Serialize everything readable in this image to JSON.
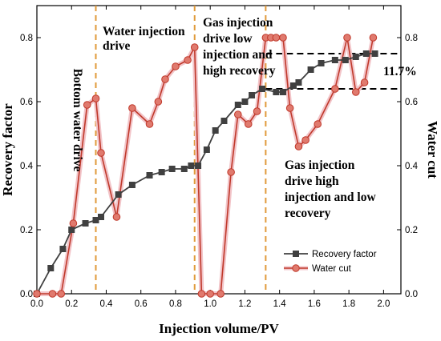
{
  "colors": {
    "recovery": "#404040",
    "water_cut": "#c0392b",
    "water_cut_fill": "#e07a6e",
    "water_cut_halo": "#f2c4c8",
    "divider": "#e09a3a",
    "reference": "#000000"
  },
  "chart_data": {
    "type": "line",
    "xlabel": "Injection volume/PV",
    "ylabel_left": "Recovery factor",
    "ylabel_right": "Water cut",
    "xlim": [
      0.0,
      2.1
    ],
    "ylim_left": [
      0.0,
      0.9
    ],
    "ylim_right": [
      0.0,
      0.9
    ],
    "x_ticks": [
      0.0,
      0.2,
      0.4,
      0.6,
      0.8,
      1.0,
      1.2,
      1.4,
      1.6,
      1.8,
      2.0
    ],
    "x_tick_labels": [
      "0.0",
      "0.2",
      "0.4",
      "0.6",
      "0.8",
      "1.0",
      "1.2",
      "1.4",
      "1.6",
      "1.8",
      "2.0"
    ],
    "y_ticks": [
      0.0,
      0.2,
      0.4,
      0.6,
      0.8
    ],
    "y_tick_labels": [
      "0.0",
      "0.2",
      "0.4",
      "0.6",
      "0.8"
    ],
    "grid": false,
    "legend_position": "bottom-right",
    "series": [
      {
        "name": "Recovery factor",
        "axis": "left",
        "marker": "square",
        "points": [
          [
            0.0,
            0.0
          ],
          [
            0.08,
            0.08
          ],
          [
            0.15,
            0.14
          ],
          [
            0.2,
            0.2
          ],
          [
            0.28,
            0.22
          ],
          [
            0.34,
            0.23
          ],
          [
            0.37,
            0.24
          ],
          [
            0.47,
            0.31
          ],
          [
            0.55,
            0.34
          ],
          [
            0.65,
            0.37
          ],
          [
            0.72,
            0.38
          ],
          [
            0.78,
            0.39
          ],
          [
            0.85,
            0.39
          ],
          [
            0.89,
            0.4
          ],
          [
            0.93,
            0.4
          ],
          [
            0.98,
            0.45
          ],
          [
            1.03,
            0.51
          ],
          [
            1.08,
            0.54
          ],
          [
            1.16,
            0.59
          ],
          [
            1.2,
            0.6
          ],
          [
            1.24,
            0.62
          ],
          [
            1.3,
            0.64
          ],
          [
            1.38,
            0.63
          ],
          [
            1.42,
            0.63
          ],
          [
            1.48,
            0.65
          ],
          [
            1.51,
            0.66
          ],
          [
            1.58,
            0.7
          ],
          [
            1.64,
            0.72
          ],
          [
            1.72,
            0.73
          ],
          [
            1.78,
            0.73
          ],
          [
            1.84,
            0.74
          ],
          [
            1.9,
            0.75
          ],
          [
            1.95,
            0.75
          ]
        ]
      },
      {
        "name": "Water cut",
        "axis": "right",
        "marker": "circle",
        "points": [
          [
            0.0,
            0.0
          ],
          [
            0.09,
            0.0
          ],
          [
            0.14,
            0.0
          ],
          [
            0.21,
            0.22
          ],
          [
            0.29,
            0.59
          ],
          [
            0.34,
            0.61
          ],
          [
            0.37,
            0.44
          ],
          [
            0.46,
            0.24
          ],
          [
            0.55,
            0.58
          ],
          [
            0.65,
            0.53
          ],
          [
            0.7,
            0.6
          ],
          [
            0.74,
            0.67
          ],
          [
            0.8,
            0.71
          ],
          [
            0.87,
            0.73
          ],
          [
            0.91,
            0.77
          ],
          [
            0.95,
            0.0
          ],
          [
            1.0,
            0.0
          ],
          [
            1.06,
            0.0
          ],
          [
            1.12,
            0.38
          ],
          [
            1.16,
            0.56
          ],
          [
            1.22,
            0.53
          ],
          [
            1.27,
            0.57
          ],
          [
            1.32,
            0.8
          ],
          [
            1.35,
            0.8
          ],
          [
            1.38,
            0.8
          ],
          [
            1.42,
            0.8
          ],
          [
            1.46,
            0.58
          ],
          [
            1.51,
            0.46
          ],
          [
            1.55,
            0.48
          ],
          [
            1.62,
            0.53
          ],
          [
            1.72,
            0.64
          ],
          [
            1.79,
            0.8
          ],
          [
            1.84,
            0.63
          ],
          [
            1.89,
            0.66
          ],
          [
            1.94,
            0.8
          ]
        ]
      }
    ],
    "dividers_x": [
      0.34,
      0.91,
      1.32
    ],
    "reference_lines": [
      {
        "y": 0.75,
        "x_from": 1.32,
        "x_to": 2.1
      },
      {
        "y": 0.64,
        "x_from": 1.32,
        "x_to": 2.1
      }
    ],
    "annotations": {
      "bottom_water_drive": "Bottom water drive",
      "water_injection": [
        "Water injection",
        "drive"
      ],
      "gas_low": [
        "Gas injection",
        "drive low",
        "injection and",
        "high recovery"
      ],
      "gas_high": [
        "Gas injection",
        "drive high",
        "injection and low",
        "recovery"
      ],
      "increment": "11.7%"
    }
  }
}
